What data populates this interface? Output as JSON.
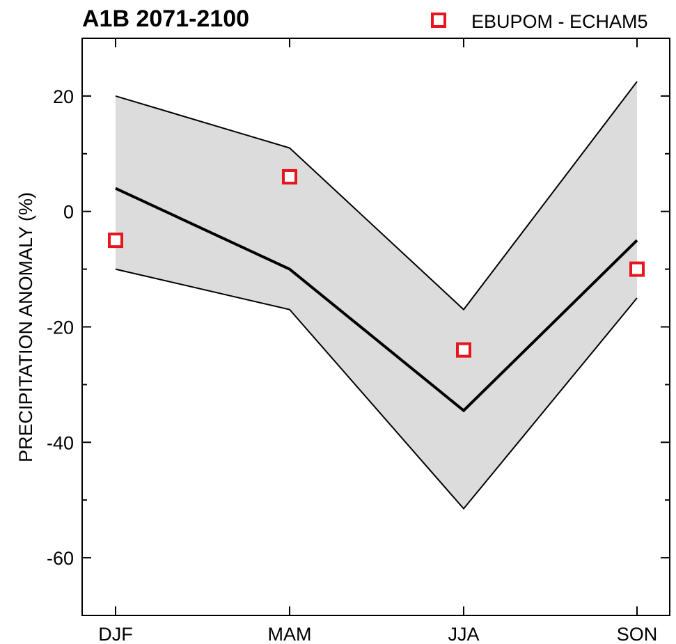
{
  "chart_data": {
    "type": "line",
    "title": "A1B 2071-2100",
    "ylabel": "PRECIPITATION ANOMALY (%)",
    "xlabel": "",
    "categories": [
      "DJF",
      "MAM",
      "JJA",
      "SON"
    ],
    "ylim": [
      -70,
      30
    ],
    "yticks": [
      -60,
      -40,
      -20,
      0,
      20
    ],
    "ytick_labels": [
      "-60",
      "-40",
      "-20",
      "0",
      "20"
    ],
    "grid": false,
    "legend": {
      "placement": "top-right",
      "entries": [
        "EBUPOM - ECHAM5"
      ]
    },
    "series": [
      {
        "kind": "band_upper",
        "values": [
          20,
          11,
          -17,
          22.5
        ]
      },
      {
        "kind": "band_lower",
        "values": [
          -10,
          -17,
          -51.5,
          -15
        ]
      },
      {
        "kind": "mean_line",
        "values": [
          4,
          -10,
          -34.5,
          -5
        ]
      },
      {
        "name": "EBUPOM - ECHAM5",
        "kind": "markers",
        "values": [
          -5,
          6,
          -24,
          -10
        ]
      }
    ],
    "colors": {
      "band": "#dcdcdc",
      "line": "#000000",
      "marker": "#e8141e"
    }
  }
}
